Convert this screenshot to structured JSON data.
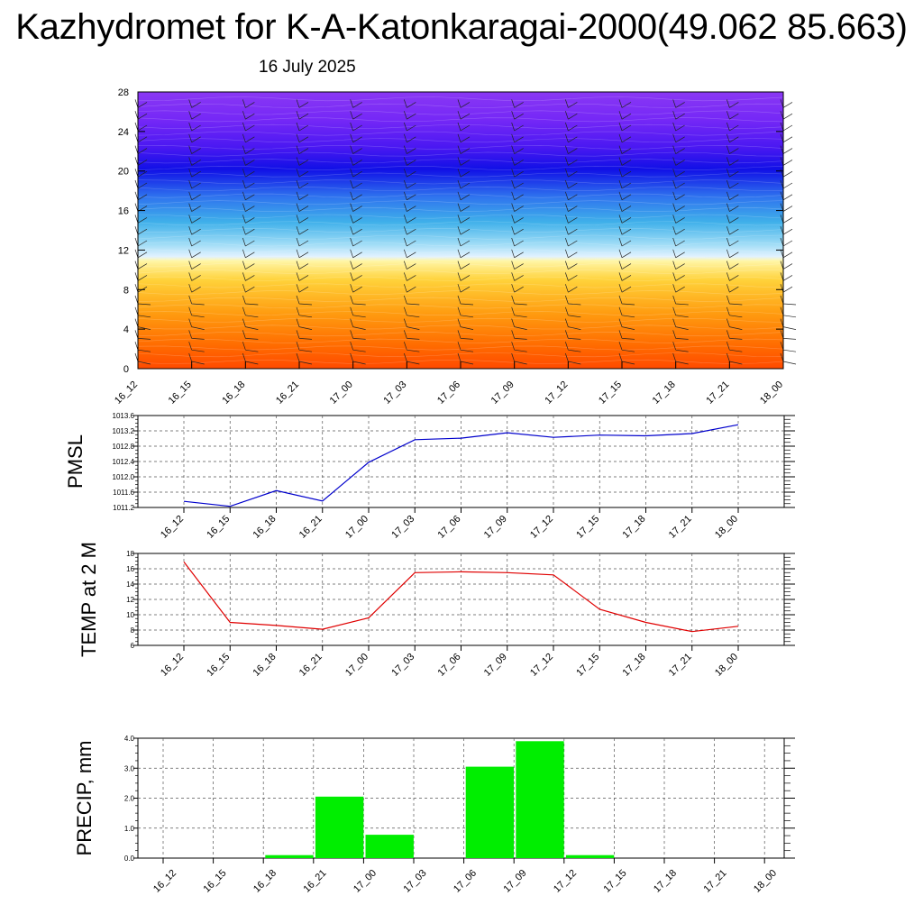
{
  "header": {
    "title": "Kazhydromet for K-A-Katonkaragai-2000(49.062 85.663)",
    "subtitle": "16 July 2025"
  },
  "colors": {
    "pmsl_line": "#0000cc",
    "temp_line": "#e00000",
    "precip_bar": "#00ee00"
  },
  "chart_data": [
    {
      "id": "profile",
      "type": "heatmap",
      "categories": [
        "16_12",
        "16_15",
        "16_18",
        "16_21",
        "17_00",
        "17_03",
        "17_06",
        "17_09",
        "17_12",
        "17_15",
        "17_18",
        "17_21",
        "18_00"
      ],
      "ylim": [
        0,
        28
      ],
      "yticks": [
        0,
        4,
        8,
        12,
        16,
        20,
        24,
        28
      ],
      "xlabel": "",
      "ylabel": "",
      "grid": false
    },
    {
      "id": "pmsl",
      "type": "line",
      "ylabel": "PMSL",
      "ylim": [
        1011.2,
        1013.6
      ],
      "yticks": [
        "1011.2",
        "1011.6",
        "1012.0",
        "1012.4",
        "1012.8",
        "1013.2",
        "1013.6"
      ],
      "categories": [
        "16_12",
        "16_15",
        "16_18",
        "16_21",
        "17_00",
        "17_03",
        "17_06",
        "17_09",
        "17_12",
        "17_15",
        "17_18",
        "17_21",
        "18_00"
      ],
      "series": [
        {
          "values": [
            1011.36,
            1011.23,
            1011.64,
            1011.37,
            1012.38,
            1012.97,
            1013.01,
            1013.15,
            1013.03,
            1013.09,
            1013.07,
            1013.13,
            1013.36
          ]
        }
      ],
      "grid": true
    },
    {
      "id": "temp",
      "type": "line",
      "ylabel": "TEMP at 2 M",
      "ylim": [
        6,
        18
      ],
      "yticks": [
        "6",
        "8",
        "10",
        "12",
        "14",
        "16",
        "18"
      ],
      "categories": [
        "16_12",
        "16_15",
        "16_18",
        "16_21",
        "17_00",
        "17_03",
        "17_06",
        "17_09",
        "17_12",
        "17_15",
        "17_18",
        "17_21",
        "18_00"
      ],
      "series": [
        {
          "values": [
            16.9,
            9.0,
            8.6,
            8.1,
            9.6,
            15.5,
            15.6,
            15.5,
            15.2,
            10.7,
            9.0,
            7.8,
            8.5
          ]
        }
      ],
      "grid": true
    },
    {
      "id": "precip",
      "type": "bar",
      "ylabel": "PRECIP, mm",
      "ylim": [
        0,
        4
      ],
      "yticks": [
        "0.0",
        "1.0",
        "2.0",
        "3.0",
        "4.0"
      ],
      "categories": [
        "16_12",
        "16_15",
        "16_18",
        "16_21",
        "17_00",
        "17_03",
        "17_06",
        "17_09",
        "17_12",
        "17_15",
        "17_18",
        "17_21",
        "18_00"
      ],
      "values": [
        0,
        0,
        0.1,
        2.05,
        0.78,
        0,
        3.05,
        3.9,
        0.1,
        0,
        0,
        0,
        0
      ],
      "grid": true
    }
  ]
}
